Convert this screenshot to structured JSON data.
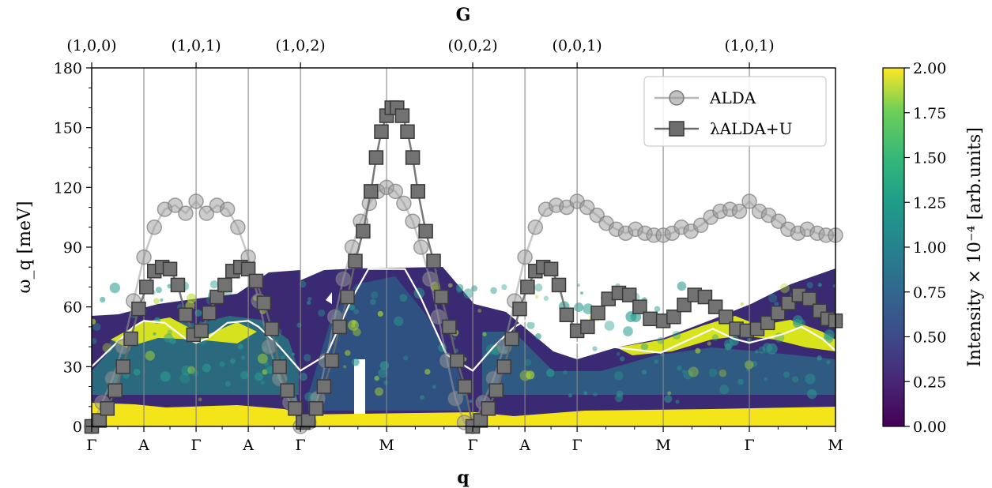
{
  "chart_data": {
    "type": "scatter",
    "title": "",
    "top_axis_label": "G",
    "top_ticks": [
      {
        "q": 0,
        "label": "(1,0,0)"
      },
      {
        "q": 2,
        "label": "(1,0,1)"
      },
      {
        "q": 4,
        "label": "(1,0,2)"
      },
      {
        "q": 7.3,
        "label": "(0,0,2)"
      },
      {
        "q": 9.3,
        "label": "(0,0,1)"
      },
      {
        "q": 12.6,
        "label": "(1,0,1)"
      }
    ],
    "xlabel": "q",
    "x_ticks": [
      {
        "q": 0,
        "label": "Γ"
      },
      {
        "q": 1,
        "label": "A"
      },
      {
        "q": 2,
        "label": "Γ"
      },
      {
        "q": 3,
        "label": "A"
      },
      {
        "q": 4,
        "label": "Γ"
      },
      {
        "q": 5.65,
        "label": "M"
      },
      {
        "q": 7.3,
        "label": "Γ"
      },
      {
        "q": 8.3,
        "label": "A"
      },
      {
        "q": 9.3,
        "label": "Γ"
      },
      {
        "q": 10.95,
        "label": "M"
      },
      {
        "q": 12.6,
        "label": "Γ"
      },
      {
        "q": 14.25,
        "label": "M"
      }
    ],
    "xlim": [
      0,
      14.25
    ],
    "ylabel": "ω_q [meV]",
    "ylim": [
      0,
      180
    ],
    "y_ticks": [
      0,
      30,
      60,
      90,
      120,
      150,
      180
    ],
    "colorbar": {
      "label": "Intensity × 10⁻⁴ [arb.units]",
      "range": [
        0,
        2
      ],
      "ticks": [
        "0.00",
        "0.25",
        "0.50",
        "0.75",
        "1.00",
        "1.25",
        "1.50",
        "1.75",
        "2.00"
      ],
      "colormap": "viridis"
    },
    "legend": {
      "placement": "top-right"
    },
    "series": [
      {
        "name": "ALDA",
        "marker": "circle",
        "color": "#9a9a9a",
        "points": [
          [
            0,
            0
          ],
          [
            0.2,
            12
          ],
          [
            0.4,
            24
          ],
          [
            0.6,
            40
          ],
          [
            0.8,
            63
          ],
          [
            1.0,
            85
          ],
          [
            1.2,
            100
          ],
          [
            1.4,
            109
          ],
          [
            1.6,
            111
          ],
          [
            1.8,
            107
          ],
          [
            2.0,
            113
          ],
          [
            2.2,
            107
          ],
          [
            2.4,
            111
          ],
          [
            2.6,
            109
          ],
          [
            2.8,
            100
          ],
          [
            3.0,
            85
          ],
          [
            3.2,
            63
          ],
          [
            3.4,
            40
          ],
          [
            3.6,
            24
          ],
          [
            3.8,
            12
          ],
          [
            4.0,
            0
          ],
          [
            4.16,
            2
          ],
          [
            4.33,
            14
          ],
          [
            4.49,
            33
          ],
          [
            4.66,
            55
          ],
          [
            4.82,
            74
          ],
          [
            4.99,
            90
          ],
          [
            5.15,
            103
          ],
          [
            5.32,
            112
          ],
          [
            5.48,
            118
          ],
          [
            5.65,
            120
          ],
          [
            5.82,
            118
          ],
          [
            5.98,
            112
          ],
          [
            6.15,
            103
          ],
          [
            6.31,
            90
          ],
          [
            6.48,
            74
          ],
          [
            6.64,
            55
          ],
          [
            6.81,
            33
          ],
          [
            6.97,
            14
          ],
          [
            7.14,
            2
          ],
          [
            7.3,
            0
          ],
          [
            7.5,
            12
          ],
          [
            7.7,
            24
          ],
          [
            7.9,
            40
          ],
          [
            8.1,
            63
          ],
          [
            8.3,
            85
          ],
          [
            8.5,
            100
          ],
          [
            8.7,
            109
          ],
          [
            8.9,
            111
          ],
          [
            9.1,
            110
          ],
          [
            9.3,
            113
          ],
          [
            9.49,
            110
          ],
          [
            9.68,
            106
          ],
          [
            9.86,
            102
          ],
          [
            10.05,
            99
          ],
          [
            10.23,
            97
          ],
          [
            10.42,
            99
          ],
          [
            10.6,
            97
          ],
          [
            10.77,
            96
          ],
          [
            10.95,
            96
          ],
          [
            11.12,
            97
          ],
          [
            11.3,
            100
          ],
          [
            11.48,
            98
          ],
          [
            11.67,
            101
          ],
          [
            11.86,
            105
          ],
          [
            12.04,
            108
          ],
          [
            12.23,
            109
          ],
          [
            12.41,
            108
          ],
          [
            12.6,
            113
          ],
          [
            12.79,
            108
          ],
          [
            12.97,
            106
          ],
          [
            13.16,
            103
          ],
          [
            13.34,
            99
          ],
          [
            13.53,
            97
          ],
          [
            13.71,
            99
          ],
          [
            13.9,
            97
          ],
          [
            14.07,
            96
          ],
          [
            14.25,
            96
          ]
        ]
      },
      {
        "name": "λALDA+U",
        "marker": "square",
        "color": "#6a6a6a",
        "points": [
          [
            0,
            0
          ],
          [
            0.15,
            3
          ],
          [
            0.3,
            9
          ],
          [
            0.45,
            18
          ],
          [
            0.6,
            30
          ],
          [
            0.75,
            44
          ],
          [
            0.9,
            59
          ],
          [
            1.05,
            70
          ],
          [
            1.2,
            78
          ],
          [
            1.35,
            80
          ],
          [
            1.5,
            79
          ],
          [
            1.65,
            71
          ],
          [
            1.8,
            56
          ],
          [
            1.95,
            46
          ],
          [
            2.1,
            48
          ],
          [
            2.25,
            57
          ],
          [
            2.4,
            65
          ],
          [
            2.55,
            71
          ],
          [
            2.7,
            78
          ],
          [
            2.85,
            80
          ],
          [
            3.0,
            79
          ],
          [
            3.15,
            73
          ],
          [
            3.3,
            62
          ],
          [
            3.45,
            49
          ],
          [
            3.6,
            30
          ],
          [
            3.75,
            18
          ],
          [
            3.9,
            9
          ],
          [
            4.05,
            2
          ],
          [
            4.15,
            3
          ],
          [
            4.3,
            9
          ],
          [
            4.45,
            20
          ],
          [
            4.6,
            33
          ],
          [
            4.75,
            50
          ],
          [
            4.9,
            65
          ],
          [
            5.05,
            83
          ],
          [
            5.2,
            98
          ],
          [
            5.35,
            118
          ],
          [
            5.45,
            135
          ],
          [
            5.55,
            148
          ],
          [
            5.65,
            156
          ],
          [
            5.75,
            160
          ],
          [
            5.85,
            160
          ],
          [
            5.95,
            156
          ],
          [
            6.05,
            148
          ],
          [
            6.15,
            135
          ],
          [
            6.25,
            118
          ],
          [
            6.4,
            98
          ],
          [
            6.55,
            83
          ],
          [
            6.7,
            65
          ],
          [
            6.85,
            50
          ],
          [
            7.0,
            33
          ],
          [
            7.15,
            20
          ],
          [
            7.3,
            0
          ],
          [
            7.45,
            3
          ],
          [
            7.6,
            9
          ],
          [
            7.75,
            18
          ],
          [
            7.9,
            30
          ],
          [
            8.05,
            44
          ],
          [
            8.2,
            59
          ],
          [
            8.35,
            70
          ],
          [
            8.5,
            78
          ],
          [
            8.65,
            80
          ],
          [
            8.8,
            79
          ],
          [
            8.95,
            71
          ],
          [
            9.1,
            56
          ],
          [
            9.3,
            48
          ],
          [
            9.5,
            50
          ],
          [
            9.7,
            57
          ],
          [
            9.9,
            64
          ],
          [
            10.1,
            67
          ],
          [
            10.3,
            66
          ],
          [
            10.5,
            60
          ],
          [
            10.7,
            54
          ],
          [
            10.95,
            53
          ],
          [
            11.15,
            55
          ],
          [
            11.35,
            61
          ],
          [
            11.55,
            66
          ],
          [
            11.75,
            65
          ],
          [
            11.95,
            60
          ],
          [
            12.15,
            55
          ],
          [
            12.35,
            49
          ],
          [
            12.55,
            48
          ],
          [
            12.75,
            49
          ],
          [
            12.95,
            52
          ],
          [
            13.15,
            57
          ],
          [
            13.35,
            62
          ],
          [
            13.55,
            66
          ],
          [
            13.75,
            64
          ],
          [
            13.95,
            58
          ],
          [
            14.1,
            54
          ],
          [
            14.25,
            53
          ]
        ]
      }
    ],
    "white_dispersion_line": [
      [
        0,
        30
      ],
      [
        0.4,
        40
      ],
      [
        0.8,
        50
      ],
      [
        1.0,
        53
      ],
      [
        1.4,
        52
      ],
      [
        1.8,
        44
      ],
      [
        2.0,
        42
      ],
      [
        2.2,
        44
      ],
      [
        2.6,
        52
      ],
      [
        3.0,
        53
      ],
      [
        3.2,
        50
      ],
      [
        3.6,
        40
      ],
      [
        4.0,
        28
      ],
      [
        4.5,
        36
      ],
      [
        5.0,
        65
      ],
      [
        5.3,
        79
      ],
      [
        6.0,
        79
      ],
      [
        6.3,
        65
      ],
      [
        6.8,
        36
      ],
      [
        7.3,
        28
      ],
      [
        7.7,
        40
      ],
      [
        8.1,
        50
      ],
      [
        8.3,
        53
      ],
      [
        8.7,
        52
      ],
      [
        9.1,
        44
      ],
      [
        9.3,
        42
      ],
      [
        10.9,
        37
      ],
      [
        11.4,
        43
      ],
      [
        11.9,
        49
      ],
      [
        12.3,
        44
      ],
      [
        12.6,
        42
      ],
      [
        13.2,
        46
      ],
      [
        13.6,
        50
      ],
      [
        14.0,
        44
      ],
      [
        14.25,
        38
      ]
    ]
  }
}
